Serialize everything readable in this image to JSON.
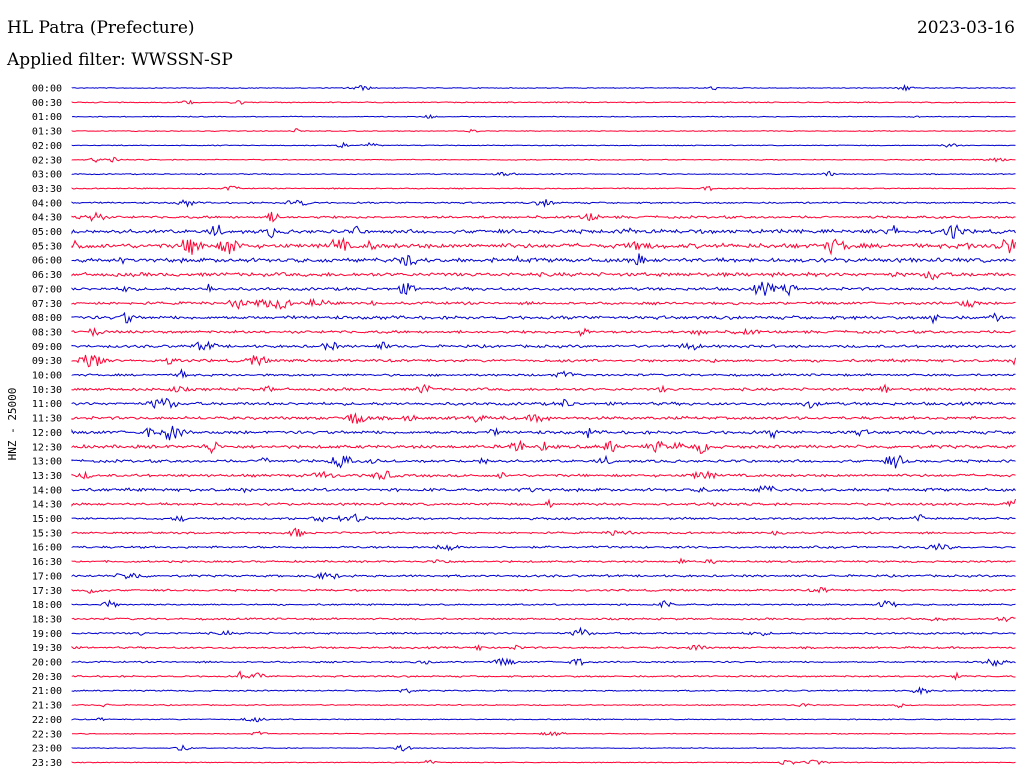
{
  "header": {
    "station": "HL Patra (Prefecture)",
    "date": "2023-03-16",
    "filter": "Applied filter: WWSSN-SP"
  },
  "chart_data": {
    "type": "line",
    "title": "HL Patra (Prefecture)",
    "ylabel": "HNZ - 25000",
    "xlabel": "",
    "colors": [
      "#0000cc",
      "#ff0033"
    ],
    "rows": [
      "00:00",
      "00:30",
      "01:00",
      "01:30",
      "02:00",
      "02:30",
      "03:00",
      "03:30",
      "04:00",
      "04:30",
      "05:00",
      "05:30",
      "06:00",
      "06:30",
      "07:00",
      "07:30",
      "08:00",
      "08:30",
      "09:00",
      "09:30",
      "10:00",
      "10:30",
      "11:00",
      "11:30",
      "12:00",
      "12:30",
      "13:00",
      "13:30",
      "14:00",
      "14:30",
      "15:00",
      "15:30",
      "16:00",
      "16:30",
      "17:00",
      "17:30",
      "18:00",
      "18:30",
      "19:00",
      "19:30",
      "20:00",
      "20:30",
      "21:00",
      "21:30",
      "22:00",
      "22:30",
      "23:00",
      "23:30"
    ],
    "activity": [
      0.3,
      0.4,
      0.3,
      0.3,
      0.3,
      0.35,
      0.4,
      0.4,
      0.6,
      0.9,
      1.4,
      1.7,
      1.5,
      1.4,
      1.1,
      1.0,
      1.2,
      1.0,
      1.0,
      1.0,
      0.8,
      1.0,
      1.1,
      1.1,
      1.2,
      1.2,
      1.0,
      1.0,
      1.1,
      0.9,
      0.8,
      0.7,
      0.8,
      0.7,
      0.8,
      0.7,
      0.6,
      0.7,
      0.7,
      0.7,
      0.6,
      0.6,
      0.5,
      0.4,
      0.4,
      0.3,
      0.3,
      0.3
    ],
    "grid": false
  }
}
